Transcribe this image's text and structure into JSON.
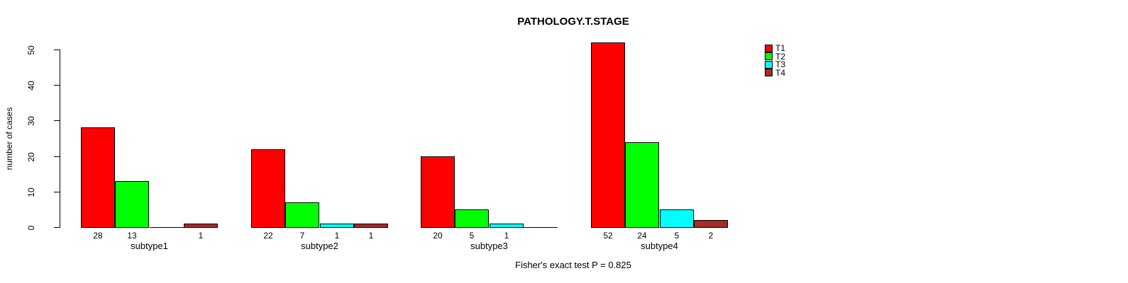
{
  "chart_data": {
    "type": "bar",
    "title": "PATHOLOGY.T.STAGE",
    "xlabel": "",
    "ylabel": "number of cases",
    "ylim": [
      0,
      50
    ],
    "yticks": [
      0,
      10,
      20,
      30,
      40,
      50
    ],
    "grid": false,
    "legend_position": "top-right",
    "categories": [
      "subtype1",
      "subtype2",
      "subtype3",
      "subtype4"
    ],
    "series": [
      {
        "name": "T1",
        "color": "#FF0000",
        "values": [
          28,
          22,
          20,
          52
        ]
      },
      {
        "name": "T2",
        "color": "#00FF00",
        "values": [
          13,
          7,
          5,
          24
        ]
      },
      {
        "name": "T3",
        "color": "#00FFFF",
        "values": [
          0,
          1,
          1,
          5
        ]
      },
      {
        "name": "T4",
        "color": "#A52A2A",
        "values": [
          1,
          1,
          0,
          2
        ]
      }
    ],
    "bar_value_labels_note": "zero values have no printed label",
    "caption": "Fisher's exact test P = 0.825"
  }
}
